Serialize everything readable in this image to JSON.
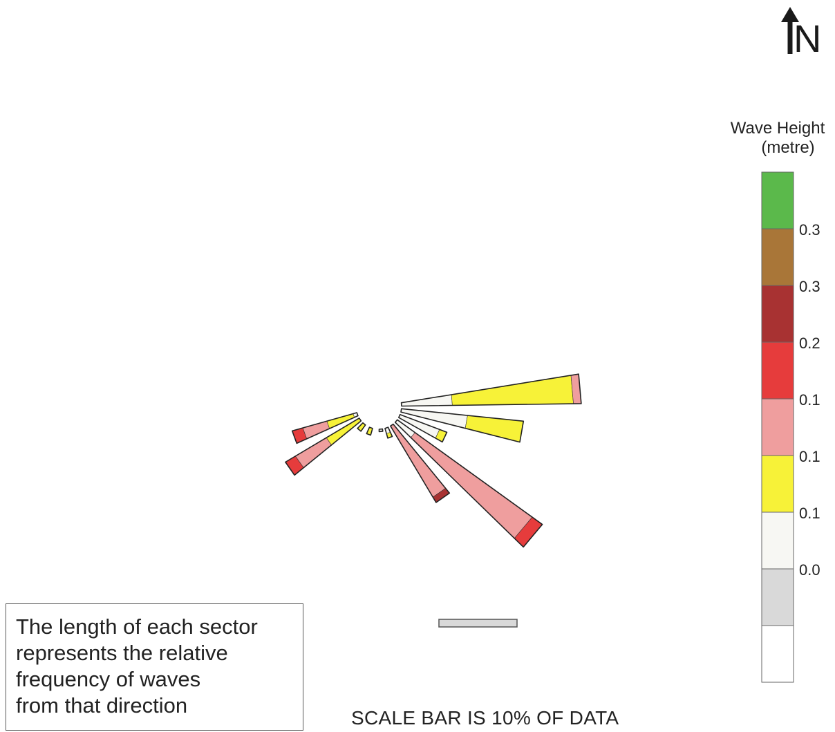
{
  "chart_data": {
    "type": "wind-rose",
    "title": "",
    "legend": {
      "title": "Wave Height",
      "unit": "(metre)",
      "bins": [
        {
          "color": "#ffffff"
        },
        {
          "color": "#d9d9d9"
        },
        {
          "color": "#f7f7f3"
        },
        {
          "color": "#f7f238"
        },
        {
          "color": "#ef9e9e"
        },
        {
          "color": "#e63c3c"
        },
        {
          "color": "#a83232"
        },
        {
          "color": "#a97638"
        },
        {
          "color": "#5bb94b"
        }
      ],
      "tick_labels": [
        "0.0",
        "0.1",
        "0.1",
        "0.1",
        "0.2",
        "0.3",
        "0.3"
      ]
    },
    "scale_bar_percent": 10,
    "sectors": [
      {
        "direction_deg": 85,
        "segments": [
          {
            "bin": 2,
            "length": 6.5
          },
          {
            "bin": 3,
            "length": 15.5
          },
          {
            "bin": 4,
            "length": 1
          }
        ]
      },
      {
        "direction_deg": 100,
        "segments": [
          {
            "bin": 2,
            "length": 8.5
          },
          {
            "bin": 3,
            "length": 7.2
          }
        ]
      },
      {
        "direction_deg": 115,
        "segments": [
          {
            "bin": 2,
            "length": 5.4
          },
          {
            "bin": 3,
            "length": 1
          }
        ]
      },
      {
        "direction_deg": 130,
        "segments": [
          {
            "bin": 2,
            "length": 2.8
          },
          {
            "bin": 4,
            "length": 18.5
          },
          {
            "bin": 5,
            "length": 1.6
          }
        ]
      },
      {
        "direction_deg": 145,
        "segments": [
          {
            "bin": 4,
            "length": 10.6
          },
          {
            "bin": 6,
            "length": 0.8
          }
        ]
      },
      {
        "direction_deg": 160,
        "segments": [
          {
            "bin": 2,
            "length": 0.7
          },
          {
            "bin": 3,
            "length": 0.6
          }
        ]
      },
      {
        "direction_deg": 175,
        "segments": [
          {
            "bin": 2,
            "length": 0.3
          }
        ]
      },
      {
        "direction_deg": 200,
        "segments": [
          {
            "bin": 3,
            "length": 0.9
          }
        ]
      },
      {
        "direction_deg": 220,
        "segments": [
          {
            "bin": 3,
            "length": 1
          }
        ]
      },
      {
        "direction_deg": 235,
        "segments": [
          {
            "bin": 3,
            "length": 4.9
          },
          {
            "bin": 4,
            "length": 4.6
          },
          {
            "bin": 5,
            "length": 1.5
          }
        ]
      },
      {
        "direction_deg": 250,
        "segments": [
          {
            "bin": 2,
            "length": 0.5
          },
          {
            "bin": 3,
            "length": 3.5
          },
          {
            "bin": 4,
            "length": 3.2
          },
          {
            "bin": 5,
            "length": 1.4
          }
        ]
      }
    ]
  },
  "north_label": "N",
  "note": {
    "lines": [
      "The length of each sector",
      "represents the relative",
      "frequency of waves",
      "from that direction"
    ]
  },
  "scale_caption": "SCALE BAR IS 10% OF DATA"
}
